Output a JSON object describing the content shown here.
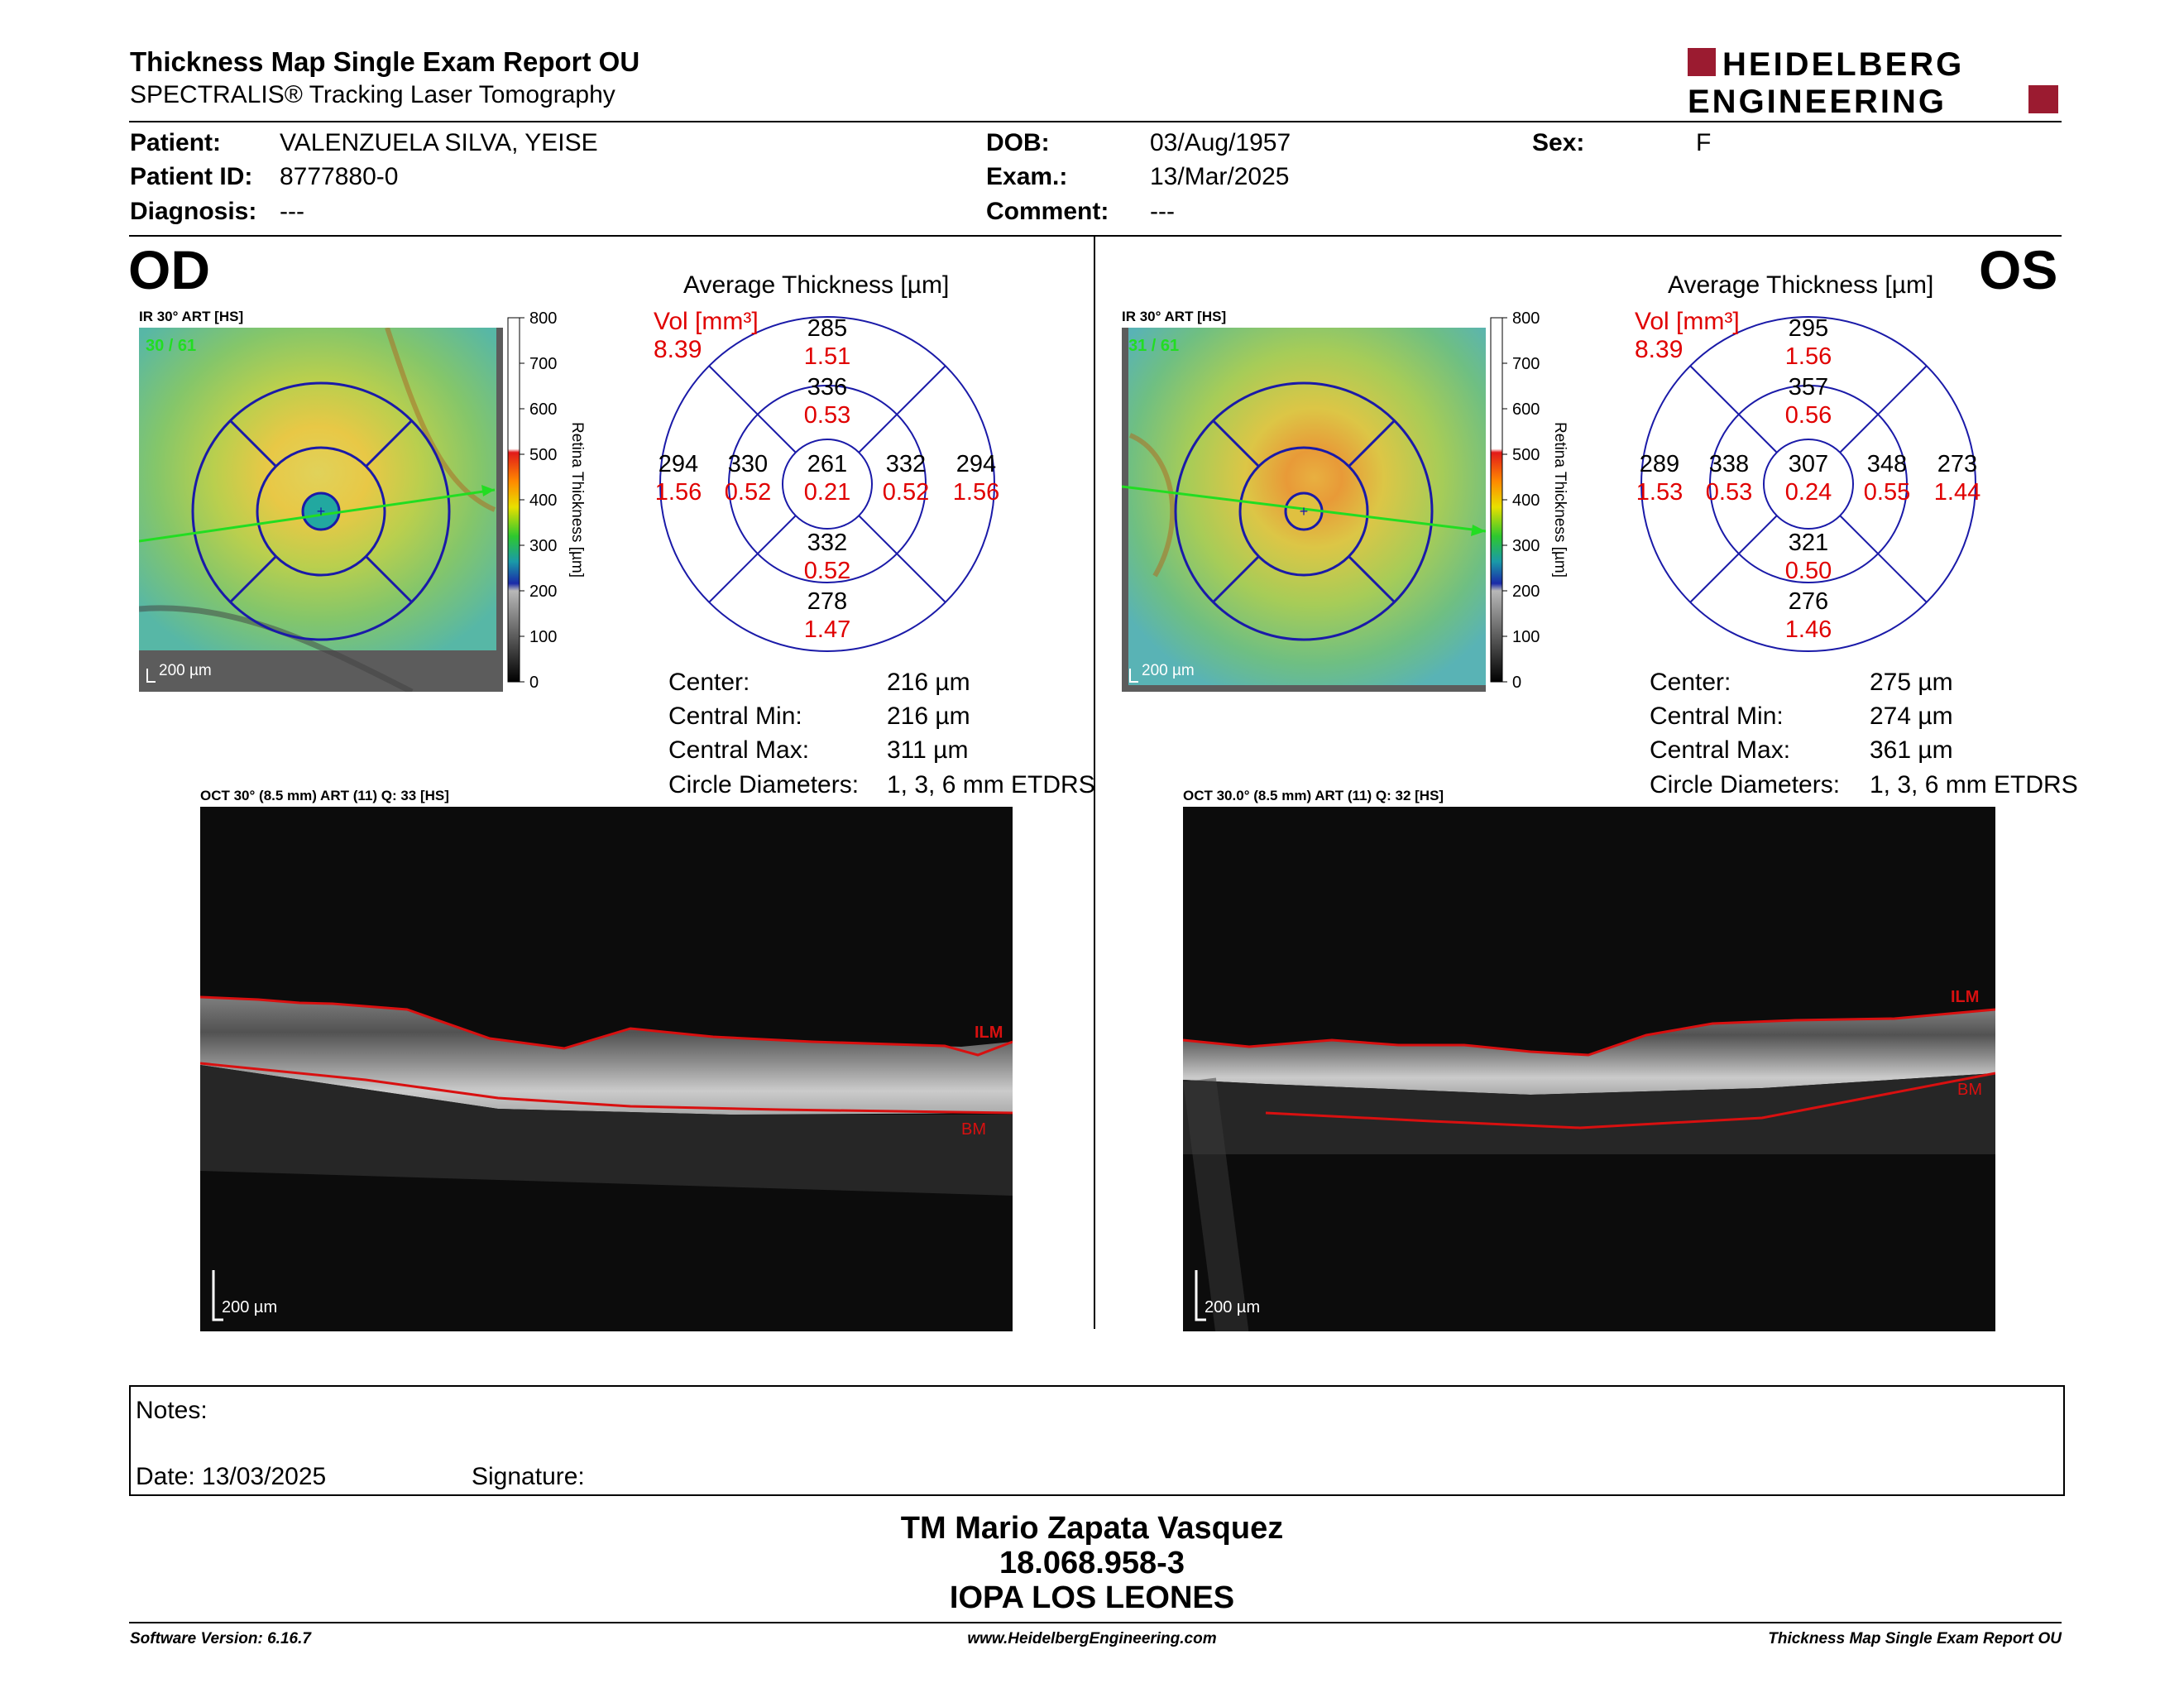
{
  "header": {
    "title": "Thickness Map Single Exam Report OU",
    "subtitle": "SPECTRALIS® Tracking Laser Tomography",
    "logo_line1": "HEIDELBERG",
    "logo_line2": "ENGINEERING"
  },
  "patient": {
    "patient_label": "Patient:",
    "patient_value": "VALENZUELA SILVA, YEISE",
    "id_label": "Patient ID:",
    "id_value": "8777880-0",
    "diagnosis_label": "Diagnosis:",
    "diagnosis_value": "---",
    "dob_label": "DOB:",
    "dob_value": "03/Aug/1957",
    "exam_label": "Exam.:",
    "exam_value": "13/Mar/2025",
    "comment_label": "Comment:",
    "comment_value": "---",
    "sex_label": "Sex:",
    "sex_value": "F"
  },
  "colorbar": {
    "ticks": [
      "800",
      "700",
      "600",
      "500",
      "400",
      "300",
      "200",
      "100",
      "0"
    ],
    "label": "Retina Thickness [µm]"
  },
  "od": {
    "eye": "OD",
    "ir_caption": "IR 30° ART [HS]",
    "ir_counter": "30 / 61",
    "ir_scale": "200 µm",
    "avg_title": "Average Thickness [µm]",
    "vol_label": "Vol [mm³]",
    "vol_value": "8.39",
    "grid": {
      "outer_top": [
        "285",
        "1.51"
      ],
      "inner_top": [
        "336",
        "0.53"
      ],
      "outer_left": [
        "294",
        "1.56"
      ],
      "inner_left": [
        "330",
        "0.52"
      ],
      "center": [
        "261",
        "0.21"
      ],
      "inner_right": [
        "332",
        "0.52"
      ],
      "outer_right": [
        "294",
        "1.56"
      ],
      "inner_bottom": [
        "332",
        "0.52"
      ],
      "outer_bottom": [
        "278",
        "1.47"
      ]
    },
    "stats": [
      {
        "label": "Center:",
        "value": "216 µm"
      },
      {
        "label": "Central Min:",
        "value": "216 µm"
      },
      {
        "label": "Central Max:",
        "value": "311 µm"
      },
      {
        "label": "Circle Diameters:",
        "value": "1, 3, 6 mm ETDRS"
      }
    ],
    "oct_caption": "OCT 30° (8.5 mm) ART (11) Q: 33 [HS]",
    "oct_scale": "200 µm",
    "ilm": "ILM",
    "bm": "BM"
  },
  "os": {
    "eye": "OS",
    "ir_caption": "IR 30° ART [HS]",
    "ir_counter": "31 / 61",
    "ir_scale": "200 µm",
    "avg_title": "Average Thickness [µm]",
    "vol_label": "Vol [mm³]",
    "vol_value": "8.39",
    "grid": {
      "outer_top": [
        "295",
        "1.56"
      ],
      "inner_top": [
        "357",
        "0.56"
      ],
      "outer_left": [
        "289",
        "1.53"
      ],
      "inner_left": [
        "338",
        "0.53"
      ],
      "center": [
        "307",
        "0.24"
      ],
      "inner_right": [
        "348",
        "0.55"
      ],
      "outer_right": [
        "273",
        "1.44"
      ],
      "inner_bottom": [
        "321",
        "0.50"
      ],
      "outer_bottom": [
        "276",
        "1.46"
      ]
    },
    "stats": [
      {
        "label": "Center:",
        "value": "275 µm"
      },
      {
        "label": "Central Min:",
        "value": "274 µm"
      },
      {
        "label": "Central Max:",
        "value": "361 µm"
      },
      {
        "label": "Circle Diameters:",
        "value": "1, 3, 6 mm ETDRS"
      }
    ],
    "oct_caption": "OCT 30.0° (8.5 mm) ART (11) Q: 32 [HS]",
    "oct_scale": "200 µm",
    "ilm": "ILM",
    "bm": "BM"
  },
  "notes": {
    "notes_label": "Notes:",
    "date_label": "Date: 13/03/2025",
    "signature_label": "Signature:"
  },
  "signature_block": {
    "name": "TM Mario Zapata Vasquez",
    "id": "18.068.958-3",
    "org": "IOPA LOS LEONES"
  },
  "footer": {
    "left": "Software Version: 6.16.7",
    "center": "www.HeidelbergEngineering.com",
    "right": "Thickness Map Single Exam Report OU"
  },
  "colors": {
    "grid_blue": "#1a1aa8",
    "volume_red": "#e00000",
    "ilm_red": "#d81010",
    "logo_red": "#9b1b30",
    "counter_green": "#22dd22"
  }
}
